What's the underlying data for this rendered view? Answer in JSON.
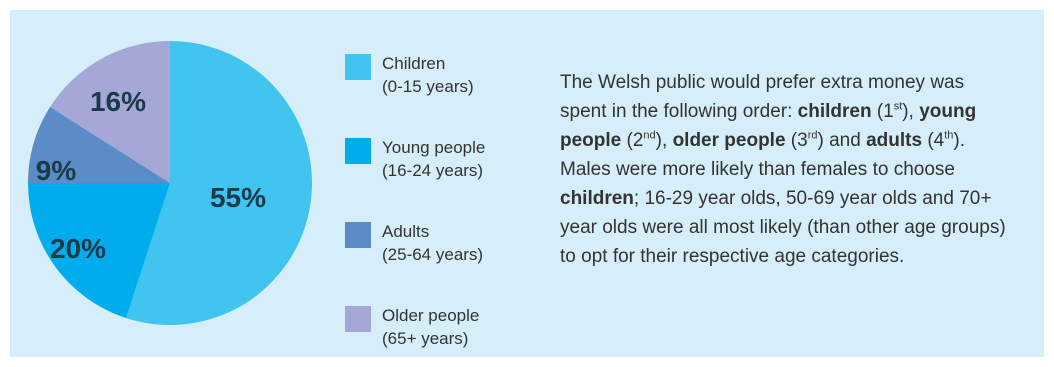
{
  "chart_data": {
    "type": "pie",
    "slices": [
      {
        "name": "Children",
        "range": "(0-15 years)",
        "value": 55,
        "label": "55%",
        "color": "#41c4f0"
      },
      {
        "name": "Young people",
        "range": "(16-24 years)",
        "value": 20,
        "label": "20%",
        "color": "#00adec"
      },
      {
        "name": "Adults",
        "range": "(25-64 years)",
        "value": 9,
        "label": "9%",
        "color": "#5b8cc7"
      },
      {
        "name": "Older people",
        "range": "(65+ years)",
        "value": 16,
        "label": "16%",
        "color": "#a5a8d6"
      }
    ]
  },
  "text": {
    "p1": "The Welsh public would prefer extra money was spent in the following order: ",
    "b1": "children",
    "p2": " (1",
    "s1": "st",
    "p3": "), ",
    "b2": "young people",
    "p4": " (2",
    "s2": "nd",
    "p5": "), ",
    "b3": "older people",
    "p6": " (3",
    "s3": "rd",
    "p7": ") and ",
    "b4": "adults",
    "p8": " (4",
    "s4": "th",
    "p9": "). Males were more likely than females to choose ",
    "b5": "children",
    "p10": "; 16-29 year olds, 50-69 year olds and 70+ year olds were all most likely (than other age groups) to opt for their respective age categories."
  }
}
